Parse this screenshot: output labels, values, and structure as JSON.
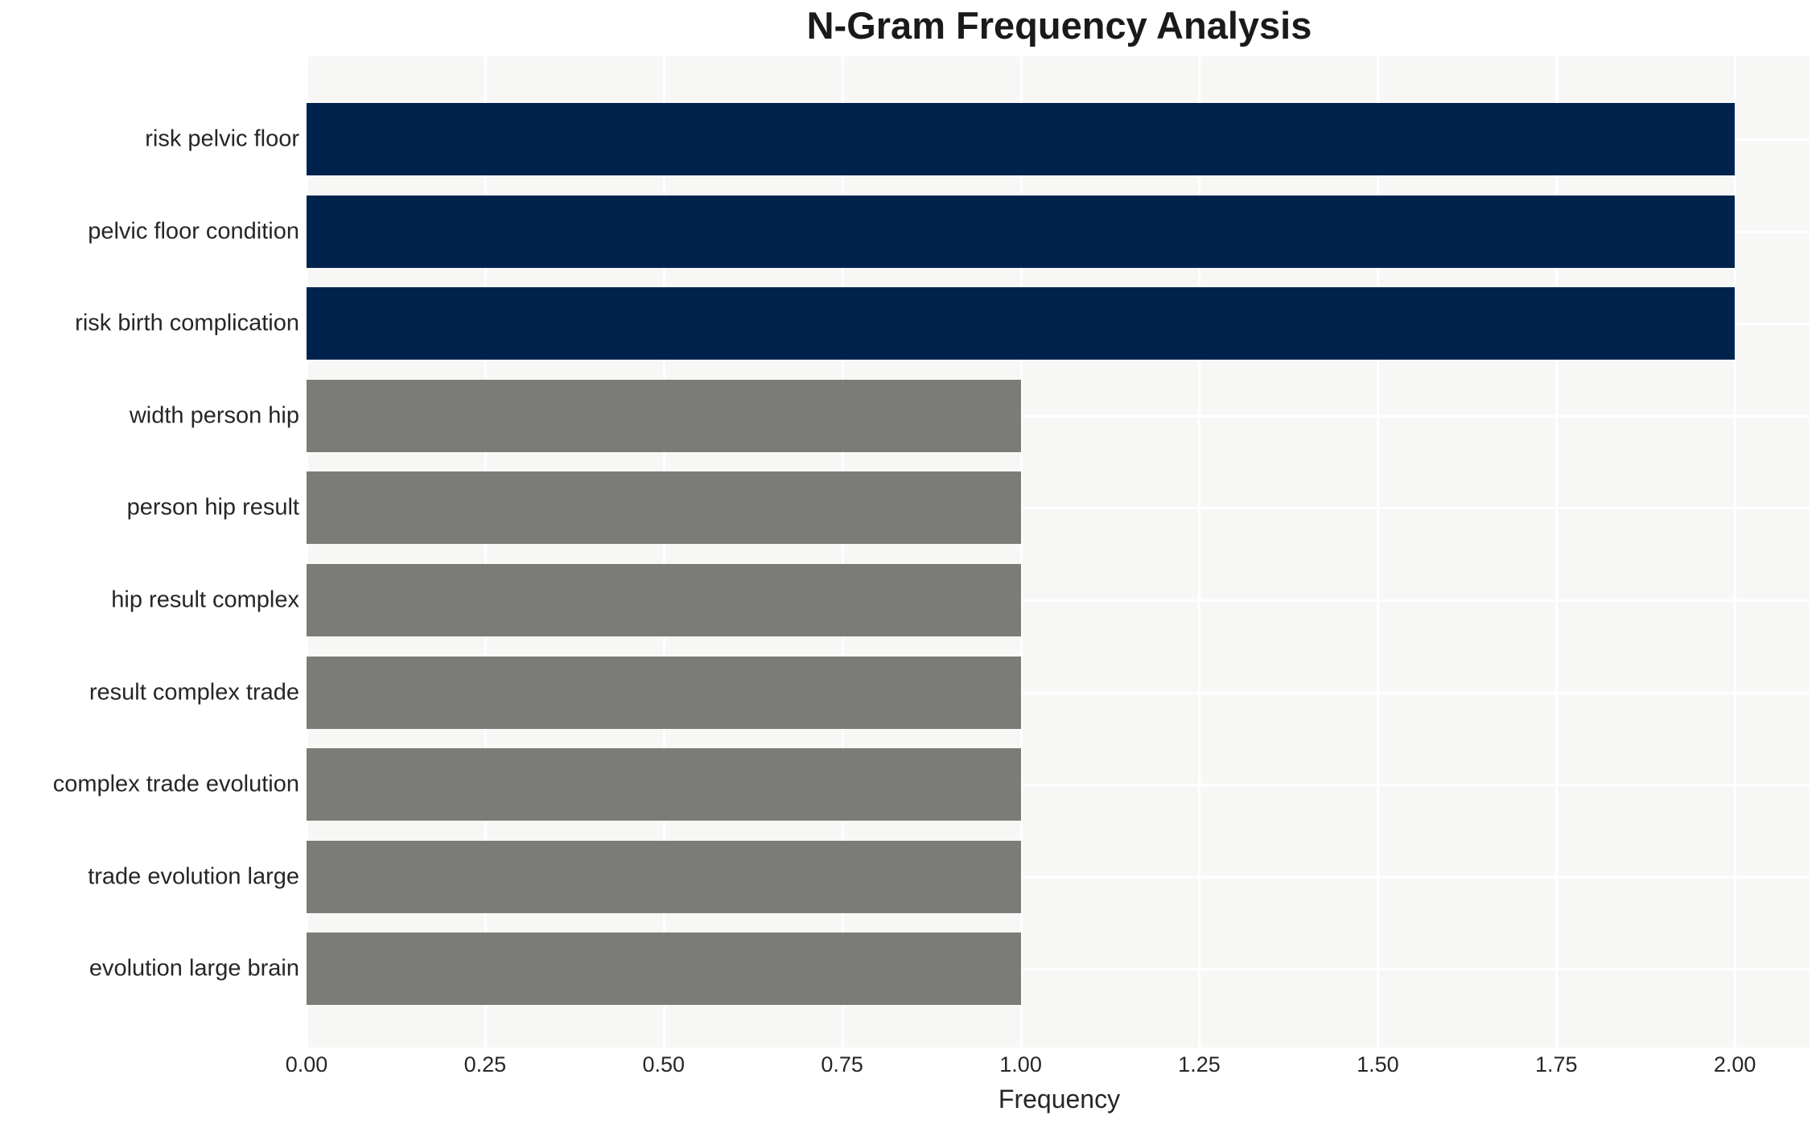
{
  "title": "N-Gram Frequency Analysis",
  "chart_data": {
    "type": "bar",
    "orientation": "horizontal",
    "title": "N-Gram Frequency Analysis",
    "xlabel": "Frequency",
    "ylabel": "",
    "categories": [
      "risk pelvic floor",
      "pelvic floor condition",
      "risk birth complication",
      "width person hip",
      "person hip result",
      "hip result complex",
      "result complex trade",
      "complex trade evolution",
      "trade evolution large",
      "evolution large brain"
    ],
    "values": [
      2,
      2,
      2,
      1,
      1,
      1,
      1,
      1,
      1,
      1
    ],
    "bar_colors": [
      "#00234e",
      "#00234e",
      "#00234e",
      "#7b7b78",
      "#7b7b78",
      "#7b7b78",
      "#7b7b78",
      "#7b7b78",
      "#7b7b78",
      "#7b7b78"
    ],
    "xlim": [
      0,
      2.108
    ],
    "xticks": [
      0,
      0.25,
      0.5,
      0.75,
      1.0,
      1.25,
      1.5,
      1.75,
      2.0
    ],
    "xtick_labels": [
      "0.00",
      "0.25",
      "0.50",
      "0.75",
      "1.00",
      "1.25",
      "1.50",
      "1.75",
      "2.00"
    ],
    "grid": true,
    "legend": false,
    "colors": {
      "high_frequency_bar": "#00234e",
      "low_frequency_bar": "#7b7b78",
      "plot_background": "#f7f7f6",
      "grid_line": "#ffffff",
      "text": "#262626"
    }
  }
}
